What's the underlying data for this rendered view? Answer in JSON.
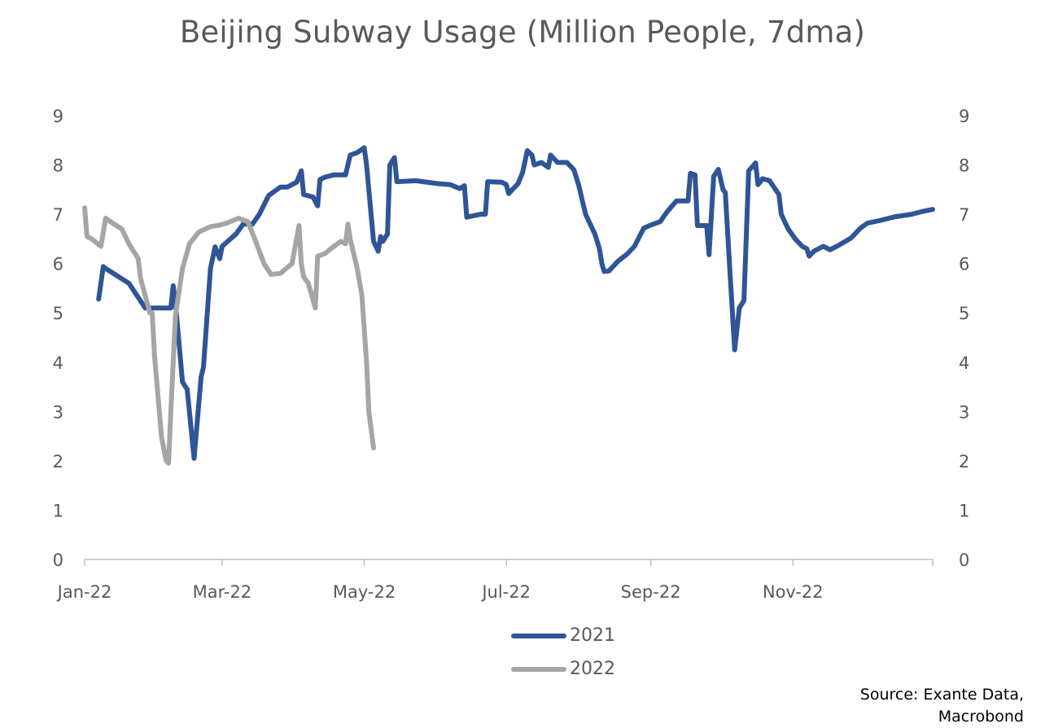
{
  "chart_data": {
    "type": "line",
    "title": "Beijing Subway Usage (Million People, 7dma)",
    "xlabel": "",
    "ylabel": "",
    "ylim": [
      0,
      9
    ],
    "yticks": [
      "0",
      "1",
      "2",
      "3",
      "4",
      "5",
      "6",
      "7",
      "8",
      "9"
    ],
    "y2ticks": [
      "0",
      "1",
      "2",
      "3",
      "4",
      "5",
      "6",
      "7",
      "8",
      "9"
    ],
    "xlim": [
      "2022-01-01",
      "2022-12-31"
    ],
    "xticks": [
      {
        "date": "2022-01-01",
        "label": "Jan-22"
      },
      {
        "date": "2022-03-01",
        "label": "Mar-22"
      },
      {
        "date": "2022-05-01",
        "label": "May-22"
      },
      {
        "date": "2022-07-01",
        "label": "Jul-22"
      },
      {
        "date": "2022-09-01",
        "label": "Sep-22"
      },
      {
        "date": "2022-11-01",
        "label": "Nov-22"
      },
      {
        "date": "2022-12-31",
        "label": ""
      }
    ],
    "grid": false,
    "legend_placement": "bottom",
    "series": [
      {
        "name": "2021",
        "color": "#2F5597",
        "x": [
          "2022-01-07",
          "2022-01-09",
          "2022-01-10",
          "2022-01-15",
          "2022-01-20",
          "2022-01-27",
          "2022-02-07",
          "2022-02-08",
          "2022-02-09",
          "2022-02-12",
          "2022-02-14",
          "2022-02-17",
          "2022-02-20",
          "2022-02-21",
          "2022-02-24",
          "2022-02-26",
          "2022-02-28",
          "2022-03-01",
          "2022-03-07",
          "2022-03-10",
          "2022-03-14",
          "2022-03-17",
          "2022-03-21",
          "2022-03-26",
          "2022-03-29",
          "2022-04-02",
          "2022-04-04",
          "2022-04-05",
          "2022-04-09",
          "2022-04-11",
          "2022-04-12",
          "2022-04-14",
          "2022-04-18",
          "2022-04-23",
          "2022-04-25",
          "2022-04-28",
          "2022-05-01",
          "2022-05-02",
          "2022-05-05",
          "2022-05-07",
          "2022-05-08",
          "2022-05-09",
          "2022-05-11",
          "2022-05-12",
          "2022-05-14",
          "2022-05-15",
          "2022-05-23",
          "2022-06-02",
          "2022-06-07",
          "2022-06-11",
          "2022-06-13",
          "2022-06-14",
          "2022-06-20",
          "2022-06-22",
          "2022-06-23",
          "2022-06-29",
          "2022-07-01",
          "2022-07-02",
          "2022-07-06",
          "2022-07-08",
          "2022-07-10",
          "2022-07-12",
          "2022-07-13",
          "2022-07-16",
          "2022-07-19",
          "2022-07-20",
          "2022-07-23",
          "2022-07-27",
          "2022-07-30",
          "2022-08-01",
          "2022-08-04",
          "2022-08-08",
          "2022-08-10",
          "2022-08-11",
          "2022-08-12",
          "2022-08-14",
          "2022-08-18",
          "2022-08-22",
          "2022-08-25",
          "2022-08-29",
          "2022-09-01",
          "2022-09-05",
          "2022-09-08",
          "2022-09-12",
          "2022-09-17",
          "2022-09-18",
          "2022-09-20",
          "2022-09-21",
          "2022-09-25",
          "2022-09-26",
          "2022-09-28",
          "2022-09-30",
          "2022-10-02",
          "2022-10-03",
          "2022-10-05",
          "2022-10-07",
          "2022-10-09",
          "2022-10-11",
          "2022-10-13",
          "2022-10-16",
          "2022-10-17",
          "2022-10-19",
          "2022-10-22",
          "2022-10-26",
          "2022-10-27",
          "2022-10-30",
          "2022-11-02",
          "2022-11-05",
          "2022-11-07",
          "2022-11-08",
          "2022-11-10",
          "2022-11-14",
          "2022-11-17",
          "2022-11-21",
          "2022-11-26",
          "2022-11-30",
          "2022-12-03",
          "2022-12-08",
          "2022-12-15",
          "2022-12-22",
          "2022-12-26",
          "2022-12-31"
        ],
        "y": [
          5.28,
          5.94,
          5.9,
          5.75,
          5.6,
          5.1,
          5.1,
          5.55,
          5.2,
          3.6,
          3.45,
          2.05,
          3.7,
          3.9,
          5.9,
          6.34,
          6.1,
          6.35,
          6.6,
          6.8,
          6.8,
          7.0,
          7.38,
          7.55,
          7.55,
          7.65,
          7.88,
          7.4,
          7.35,
          7.17,
          7.7,
          7.75,
          7.8,
          7.8,
          8.2,
          8.25,
          8.35,
          8.0,
          6.45,
          6.25,
          6.55,
          6.45,
          6.6,
          8.0,
          8.15,
          7.66,
          7.68,
          7.62,
          7.6,
          7.52,
          7.58,
          6.94,
          7.0,
          7.0,
          7.66,
          7.65,
          7.6,
          7.42,
          7.62,
          7.85,
          8.29,
          8.2,
          8.0,
          8.05,
          7.95,
          8.2,
          8.05,
          8.05,
          7.9,
          7.6,
          7.0,
          6.6,
          6.3,
          6.0,
          5.84,
          5.85,
          6.05,
          6.2,
          6.35,
          6.72,
          6.78,
          6.85,
          7.05,
          7.27,
          7.27,
          7.83,
          7.8,
          6.77,
          6.77,
          6.18,
          7.77,
          7.91,
          7.5,
          7.44,
          5.8,
          4.25,
          5.1,
          5.25,
          7.88,
          8.04,
          7.6,
          7.72,
          7.68,
          7.4,
          7.0,
          6.7,
          6.5,
          6.35,
          6.3,
          6.15,
          6.25,
          6.35,
          6.28,
          6.38,
          6.52,
          6.72,
          6.82,
          6.87,
          6.95,
          7.0,
          7.05,
          7.1
        ]
      },
      {
        "name": "2022",
        "color": "#A5A5A5",
        "x": [
          "2022-01-01",
          "2022-01-02",
          "2022-01-04",
          "2022-01-08",
          "2022-01-10",
          "2022-01-13",
          "2022-01-17",
          "2022-01-20",
          "2022-01-24",
          "2022-01-25",
          "2022-01-27",
          "2022-01-29",
          "2022-01-30",
          "2022-01-31",
          "2022-02-03",
          "2022-02-05",
          "2022-02-06",
          "2022-02-07",
          "2022-02-09",
          "2022-02-12",
          "2022-02-15",
          "2022-02-19",
          "2022-02-24",
          "2022-02-28",
          "2022-03-03",
          "2022-03-08",
          "2022-03-12",
          "2022-03-15",
          "2022-03-19",
          "2022-03-22",
          "2022-03-26",
          "2022-03-29",
          "2022-03-31",
          "2022-04-03",
          "2022-04-04",
          "2022-04-05",
          "2022-04-07",
          "2022-04-10",
          "2022-04-11",
          "2022-04-14",
          "2022-04-18",
          "2022-04-21",
          "2022-04-23",
          "2022-04-24",
          "2022-04-25",
          "2022-04-28",
          "2022-04-30",
          "2022-05-02",
          "2022-05-03",
          "2022-05-05"
        ],
        "y": [
          7.13,
          6.55,
          6.5,
          6.35,
          6.92,
          6.82,
          6.7,
          6.4,
          6.1,
          5.7,
          5.35,
          5.0,
          5.0,
          4.12,
          2.48,
          2.0,
          1.95,
          3.0,
          4.95,
          5.9,
          6.4,
          6.64,
          6.75,
          6.78,
          6.82,
          6.92,
          6.85,
          6.5,
          6.0,
          5.78,
          5.8,
          5.92,
          6.0,
          6.77,
          6.0,
          5.73,
          5.6,
          5.1,
          6.15,
          6.2,
          6.35,
          6.45,
          6.4,
          6.8,
          6.5,
          5.9,
          5.35,
          4.0,
          3.0,
          2.26
        ]
      }
    ],
    "source": [
      "Source: Exante Data,",
      "Macrobond"
    ]
  }
}
